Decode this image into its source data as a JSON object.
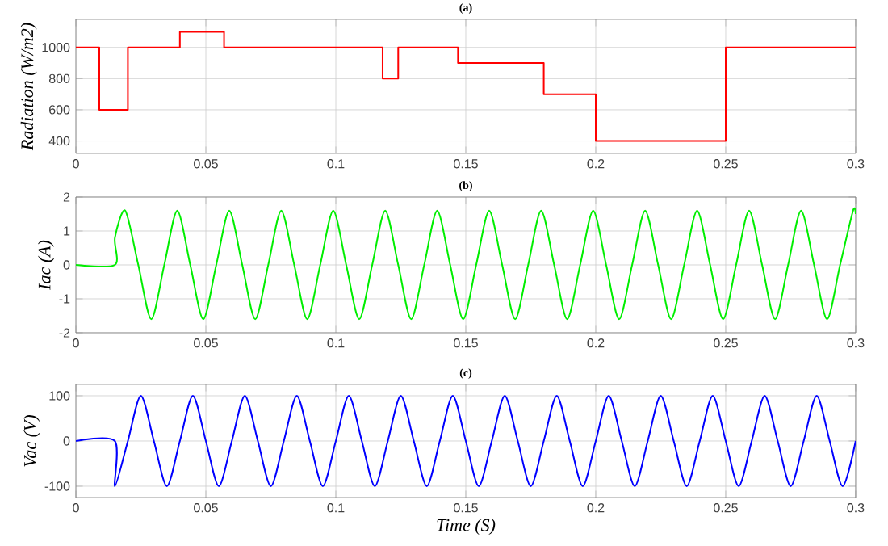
{
  "chart_data": [
    {
      "type": "step",
      "title": "(a)",
      "ylabel": "Radiation (W/m2)",
      "color": "#ff0000",
      "grid": true,
      "x": [
        0,
        0.009,
        0.02,
        0.04,
        0.057,
        0.118,
        0.124,
        0.147,
        0.18,
        0.2,
        0.25,
        0.3
      ],
      "values": [
        1000,
        600,
        1000,
        1100,
        1000,
        800,
        1000,
        900,
        700,
        400,
        1000,
        1000
      ],
      "xlim": [
        0,
        0.3
      ],
      "ylim": [
        320,
        1180
      ],
      "xticks": [
        0,
        0.05,
        0.1,
        0.15,
        0.2,
        0.25,
        0.3
      ],
      "yticks": [
        400,
        600,
        800,
        1000
      ]
    },
    {
      "type": "line",
      "title": "(b)",
      "ylabel": "Iac (A)",
      "color": "#00ee00",
      "grid": true,
      "x": [
        0,
        0.015,
        0.015,
        0.019,
        0.024,
        0.029,
        0.034,
        0.039,
        0.044,
        0.049,
        0.054,
        0.059,
        0.064,
        0.069,
        0.074,
        0.079,
        0.084,
        0.089,
        0.094,
        0.099,
        0.104,
        0.109,
        0.114,
        0.119,
        0.124,
        0.129,
        0.134,
        0.139,
        0.144,
        0.149,
        0.154,
        0.159,
        0.164,
        0.169,
        0.174,
        0.179,
        0.184,
        0.189,
        0.194,
        0.199,
        0.204,
        0.209,
        0.214,
        0.219,
        0.224,
        0.229,
        0.234,
        0.239,
        0.244,
        0.249,
        0.254,
        0.259,
        0.264,
        0.269,
        0.274,
        0.279,
        0.284,
        0.289,
        0.294,
        0.299,
        0.3
      ],
      "values": [
        0,
        0,
        0.8,
        1.6,
        0,
        -1.6,
        0,
        1.6,
        0,
        -1.6,
        0,
        1.6,
        0,
        -1.6,
        0,
        1.6,
        0,
        -1.6,
        0,
        1.6,
        0,
        -1.6,
        0,
        1.6,
        0,
        -1.6,
        0,
        1.6,
        0,
        -1.6,
        0,
        1.6,
        0,
        -1.6,
        0,
        1.6,
        0,
        -1.6,
        0,
        1.6,
        0,
        -1.6,
        0,
        1.6,
        0,
        -1.6,
        0,
        1.6,
        0,
        -1.6,
        0,
        1.6,
        0,
        -1.6,
        0,
        1.6,
        0,
        -1.6,
        0,
        1.6,
        1.5
      ],
      "xlim": [
        0,
        0.3
      ],
      "ylim": [
        -2,
        2
      ],
      "xticks": [
        0,
        0.05,
        0.1,
        0.15,
        0.2,
        0.25,
        0.3
      ],
      "yticks": [
        -2,
        -1,
        0,
        1,
        2
      ]
    },
    {
      "type": "line",
      "title": "(c)",
      "ylabel": "Vac (V)",
      "xlabel": "Time (S)",
      "color": "#0000ff",
      "grid": true,
      "x": [
        0,
        0.015,
        0.015,
        0.02,
        0.025,
        0.03,
        0.035,
        0.04,
        0.045,
        0.05,
        0.055,
        0.06,
        0.065,
        0.07,
        0.075,
        0.08,
        0.085,
        0.09,
        0.095,
        0.1,
        0.105,
        0.11,
        0.115,
        0.12,
        0.125,
        0.13,
        0.135,
        0.14,
        0.145,
        0.15,
        0.155,
        0.16,
        0.165,
        0.17,
        0.175,
        0.18,
        0.185,
        0.19,
        0.195,
        0.2,
        0.205,
        0.21,
        0.215,
        0.22,
        0.225,
        0.23,
        0.235,
        0.24,
        0.245,
        0.25,
        0.255,
        0.26,
        0.265,
        0.27,
        0.275,
        0.28,
        0.285,
        0.29,
        0.295,
        0.3
      ],
      "values": [
        0,
        0,
        -100,
        0,
        100,
        0,
        -100,
        0,
        100,
        0,
        -100,
        0,
        100,
        0,
        -100,
        0,
        100,
        0,
        -100,
        0,
        100,
        0,
        -100,
        0,
        100,
        0,
        -100,
        0,
        100,
        0,
        -100,
        0,
        100,
        0,
        -100,
        0,
        100,
        0,
        -100,
        0,
        100,
        0,
        -100,
        0,
        100,
        0,
        -100,
        0,
        100,
        0,
        -100,
        0,
        100,
        0,
        -100,
        0,
        100,
        0,
        -100,
        0
      ],
      "xlim": [
        0,
        0.3
      ],
      "ylim": [
        -125,
        125
      ],
      "xticks": [
        0,
        0.05,
        0.1,
        0.15,
        0.2,
        0.25,
        0.3
      ],
      "yticks": [
        -100,
        0,
        100
      ]
    }
  ]
}
